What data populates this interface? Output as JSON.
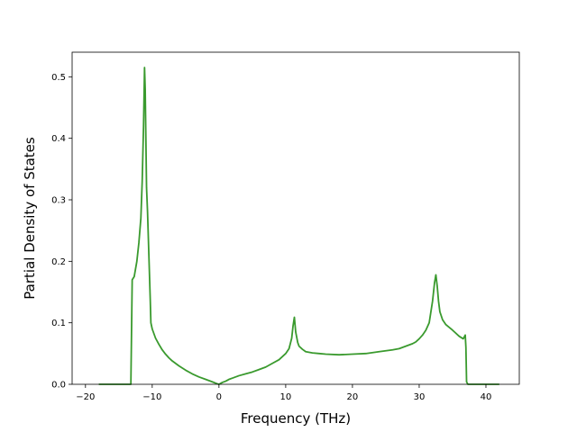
{
  "chart_data": {
    "type": "line",
    "title": "",
    "xlabel": "Frequency (THz)",
    "ylabel": "Partial Density of States",
    "xlim": [
      -22.0,
      45.0
    ],
    "ylim": [
      0.0,
      0.54
    ],
    "xticks": [
      -20,
      -10,
      0,
      10,
      20,
      30,
      40
    ],
    "xtick_labels": [
      "−20",
      "−10",
      "0",
      "10",
      "20",
      "30",
      "40"
    ],
    "yticks": [
      0.0,
      0.1,
      0.2,
      0.3,
      0.4,
      0.5
    ],
    "ytick_labels": [
      "0.0",
      "0.1",
      "0.2",
      "0.3",
      "0.4",
      "0.5"
    ],
    "grid": false,
    "legend": "none",
    "series": [
      {
        "color": "#3a9a2e",
        "x": [
          -18,
          -13.2,
          -13.0,
          -12.7,
          -12.3,
          -12.0,
          -11.7,
          -11.5,
          -11.3,
          -11.15,
          -11.05,
          -10.95,
          -10.85,
          -10.7,
          -10.5,
          -10.3,
          -10.2,
          -10.0,
          -9.5,
          -9.0,
          -8.5,
          -8.0,
          -7.5,
          -7.0,
          -6.0,
          -5.0,
          -4.0,
          -3.0,
          -2.0,
          -1.0,
          -0.3,
          0.0,
          0.5,
          1.0,
          1.5,
          2.0,
          3.0,
          4.0,
          5.0,
          6.0,
          7.0,
          8.0,
          9.0,
          10.0,
          10.5,
          10.9,
          11.1,
          11.3,
          11.5,
          11.8,
          12.0,
          12.5,
          13.0,
          14.0,
          15.0,
          16.0,
          18.0,
          20.0,
          22.0,
          24.0,
          26.0,
          27.0,
          28.0,
          29.0,
          29.5,
          30.0,
          30.5,
          31.0,
          31.5,
          32.0,
          32.3,
          32.5,
          32.7,
          32.9,
          33.1,
          33.5,
          34.0,
          35.0,
          36.0,
          36.6,
          36.9,
          37.0,
          37.1,
          37.3,
          42.0
        ],
        "y": [
          0.0,
          0.0,
          0.17,
          0.175,
          0.2,
          0.23,
          0.27,
          0.33,
          0.42,
          0.515,
          0.48,
          0.4,
          0.32,
          0.28,
          0.21,
          0.14,
          0.1,
          0.09,
          0.075,
          0.065,
          0.056,
          0.049,
          0.043,
          0.038,
          0.03,
          0.023,
          0.017,
          0.012,
          0.008,
          0.004,
          0.001,
          0.0,
          0.003,
          0.005,
          0.008,
          0.01,
          0.014,
          0.017,
          0.02,
          0.024,
          0.028,
          0.034,
          0.04,
          0.05,
          0.058,
          0.075,
          0.095,
          0.109,
          0.085,
          0.068,
          0.062,
          0.057,
          0.053,
          0.051,
          0.05,
          0.049,
          0.048,
          0.049,
          0.05,
          0.053,
          0.056,
          0.058,
          0.062,
          0.066,
          0.069,
          0.074,
          0.08,
          0.088,
          0.1,
          0.135,
          0.165,
          0.178,
          0.16,
          0.135,
          0.118,
          0.105,
          0.097,
          0.088,
          0.078,
          0.074,
          0.08,
          0.06,
          0.004,
          0.0,
          0.0
        ]
      }
    ]
  }
}
